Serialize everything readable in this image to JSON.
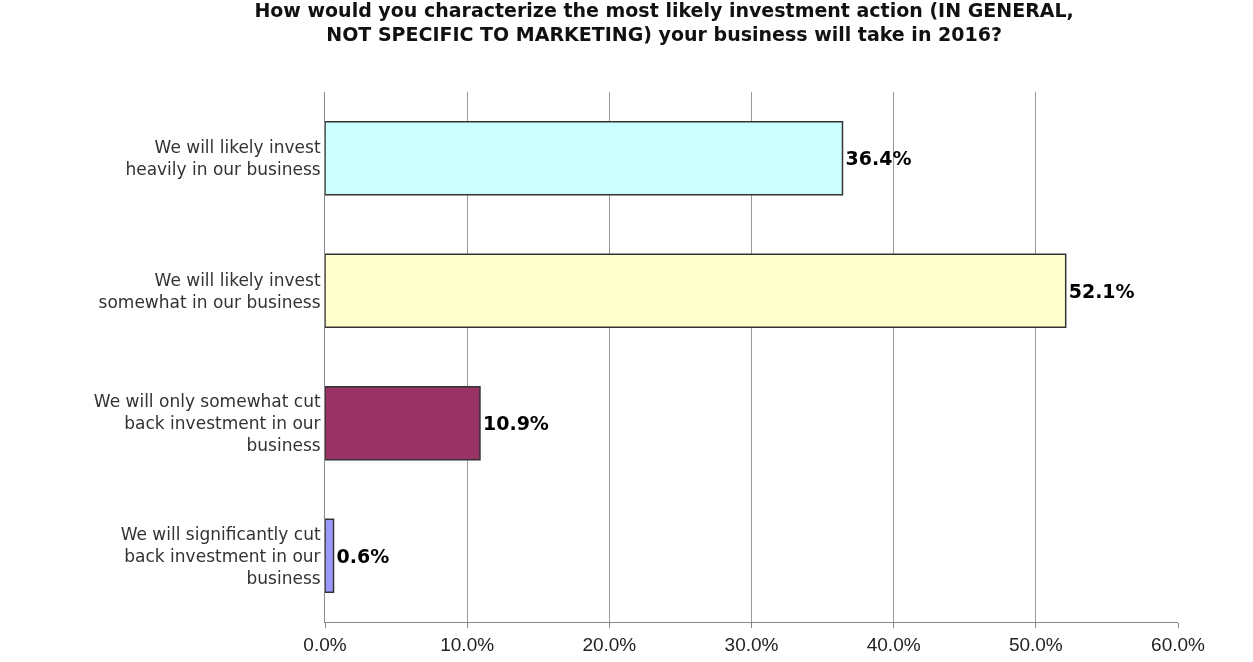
{
  "chart_data": {
    "type": "bar",
    "orientation": "horizontal",
    "title": "How would you characterize the most likely investment action (IN GENERAL, NOT SPECIFIC TO MARKETING) your business will take in 2016?",
    "categories": [
      "We will likely invest heavily in our business",
      "We will likely invest somewhat in our business",
      "We will only somewhat cut back investment in our business",
      "We will significantly cut back investment in our business"
    ],
    "values": [
      36.4,
      52.1,
      10.9,
      0.6
    ],
    "colors": [
      "#ccffff",
      "#ffffcc",
      "#993366",
      "#9999ff"
    ],
    "value_labels": [
      "36.4%",
      "52.1%",
      "10.9%",
      "0.6%"
    ],
    "xlim": [
      0,
      60
    ],
    "xticks": [
      {
        "value": 0,
        "label": "0.0%"
      },
      {
        "value": 10,
        "label": "10.0%"
      },
      {
        "value": 20,
        "label": "20.0%"
      },
      {
        "value": 30,
        "label": "30.0%"
      },
      {
        "value": 40,
        "label": "40.0%"
      },
      {
        "value": 50,
        "label": "50.0%"
      },
      {
        "value": 60,
        "label": "60.0%"
      }
    ],
    "grid": "x"
  }
}
